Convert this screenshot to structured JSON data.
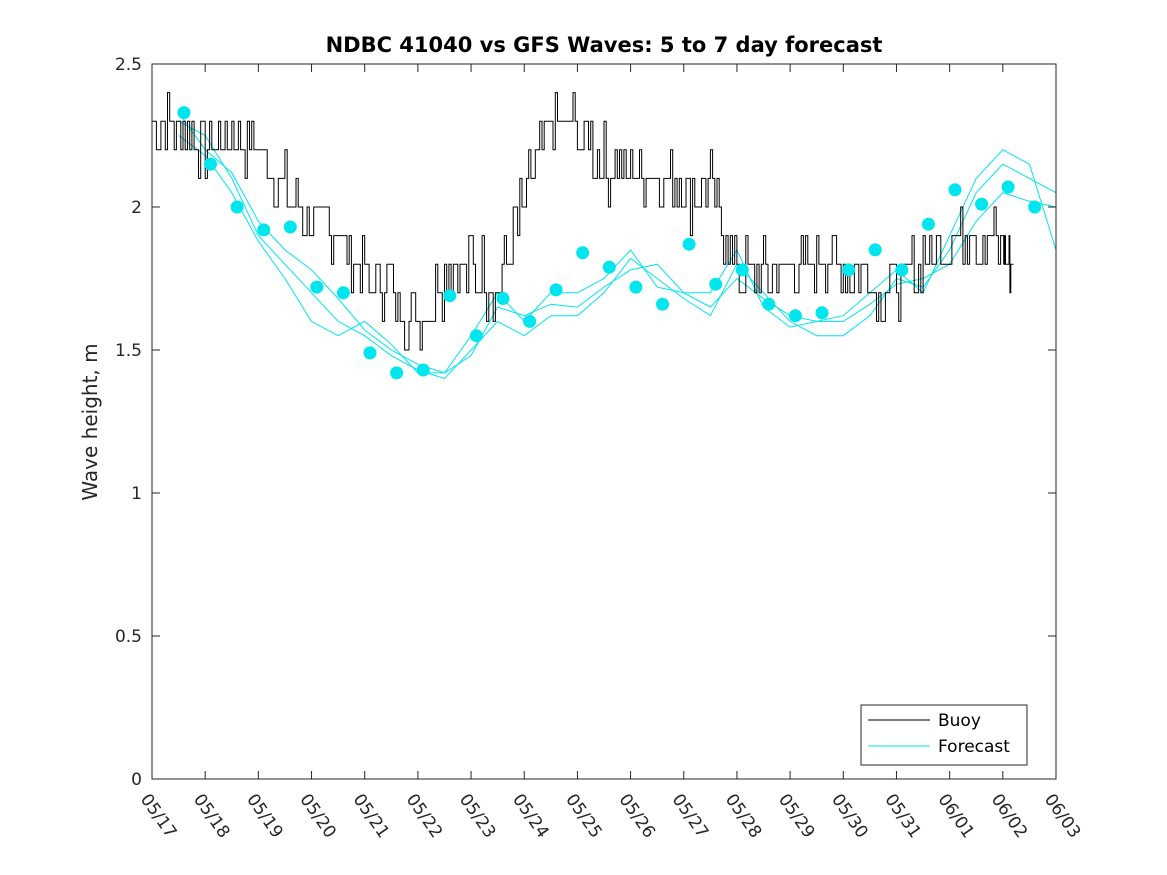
{
  "chart_data": {
    "type": "line",
    "title": "NDBC 41040 vs GFS Waves: 5 to 7 day forecast",
    "xlabel": "",
    "ylabel": "Wave height, m",
    "xlim": [
      "05/17",
      "06/03"
    ],
    "ylim": [
      0,
      2.5
    ],
    "x_ticks": [
      "05/17",
      "05/18",
      "05/19",
      "05/20",
      "05/21",
      "05/22",
      "05/23",
      "05/24",
      "05/25",
      "05/26",
      "05/27",
      "05/28",
      "05/29",
      "05/30",
      "05/31",
      "06/01",
      "06/02",
      "06/03"
    ],
    "y_ticks": [
      "0",
      "0.5",
      "1",
      "1.5",
      "2",
      "2.5"
    ],
    "grid": false,
    "legend": {
      "position": "bottom-right",
      "entries": [
        {
          "name": "Buoy",
          "color": "#000000"
        },
        {
          "name": "Forecast",
          "color": "#00e5ee"
        }
      ]
    },
    "series": [
      {
        "name": "Buoy",
        "color": "#000000",
        "x_days": [
          0,
          0.5,
          1,
          1.5,
          2,
          2.5,
          3,
          3.5,
          4,
          4.5,
          5,
          5.5,
          6,
          6.5,
          7,
          7.5,
          8,
          8.5,
          9,
          9.5,
          10,
          10.5,
          11,
          11.5,
          12,
          12.5,
          13,
          13.5,
          14,
          14.5,
          15,
          15.5,
          16,
          16.2
        ],
        "values": [
          2.25,
          2.3,
          2.2,
          2.25,
          2.2,
          2.05,
          1.95,
          1.9,
          1.75,
          1.7,
          1.6,
          1.75,
          1.8,
          1.7,
          2.0,
          2.3,
          2.25,
          2.15,
          2.1,
          2.1,
          2.05,
          2.05,
          1.8,
          1.75,
          1.75,
          1.8,
          1.8,
          1.75,
          1.7,
          1.8,
          1.9,
          1.9,
          1.85,
          1.8
        ]
      },
      {
        "name": "Forecast",
        "color": "#00e5ee",
        "runs": [
          {
            "x_days": [
              0.5,
              1.0,
              1.5,
              2.0,
              2.5,
              3.0,
              3.5,
              4.0,
              4.5,
              5.0,
              5.5,
              6.0,
              6.5,
              7.0,
              7.5,
              8.0,
              8.5,
              9.0,
              9.5,
              10.0,
              10.5,
              11.0,
              11.5,
              12.0,
              12.5,
              13.0,
              13.5,
              14.0,
              14.5,
              15.0,
              15.5,
              16.0,
              16.5,
              17.0
            ],
            "values": [
              2.33,
              2.2,
              2.12,
              1.95,
              1.85,
              1.78,
              1.68,
              1.57,
              1.5,
              1.45,
              1.42,
              1.48,
              1.65,
              1.62,
              1.66,
              1.65,
              1.72,
              1.78,
              1.8,
              1.7,
              1.65,
              1.75,
              1.68,
              1.62,
              1.6,
              1.6,
              1.66,
              1.73,
              1.75,
              1.8,
              1.95,
              2.05,
              2.02,
              2.0
            ]
          },
          {
            "x_days": [
              0.5,
              1.0,
              1.5,
              2.0,
              2.5,
              3.0,
              3.5,
              4.0,
              4.5,
              5.0,
              5.5,
              6.0,
              6.5,
              7.0,
              7.5,
              8.0,
              8.5,
              9.0,
              9.5,
              10.0,
              10.5,
              11.0,
              11.5,
              12.0,
              12.5,
              13.0,
              13.5,
              14.0,
              14.5,
              15.0,
              15.5,
              16.0,
              16.5,
              17.0
            ],
            "values": [
              2.3,
              2.25,
              2.1,
              1.9,
              1.8,
              1.7,
              1.6,
              1.55,
              1.48,
              1.43,
              1.4,
              1.5,
              1.6,
              1.55,
              1.62,
              1.62,
              1.7,
              1.82,
              1.75,
              1.68,
              1.62,
              1.8,
              1.7,
              1.6,
              1.55,
              1.55,
              1.62,
              1.75,
              1.72,
              1.85,
              2.05,
              2.15,
              2.1,
              2.05
            ]
          },
          {
            "x_days": [
              0.5,
              1.0,
              1.5,
              2.0,
              2.5,
              3.0,
              3.5,
              4.0,
              4.5,
              5.0,
              5.5,
              6.0,
              6.5,
              7.0,
              7.5,
              8.0,
              8.5,
              9.0,
              9.5,
              10.0,
              10.5,
              11.0,
              11.5,
              12.0,
              12.5,
              13.0,
              13.5,
              14.0,
              14.5,
              15.0,
              15.5,
              16.0,
              16.5,
              17.0
            ],
            "values": [
              2.25,
              2.18,
              2.05,
              1.88,
              1.75,
              1.6,
              1.55,
              1.6,
              1.52,
              1.42,
              1.42,
              1.55,
              1.7,
              1.6,
              1.7,
              1.7,
              1.75,
              1.85,
              1.72,
              1.7,
              1.7,
              1.85,
              1.65,
              1.58,
              1.6,
              1.62,
              1.7,
              1.78,
              1.7,
              1.9,
              2.1,
              2.2,
              2.15,
              1.85
            ]
          }
        ],
        "markers_x_days": [
          0.6,
          1.1,
          1.6,
          2.1,
          2.6,
          3.1,
          3.6,
          4.1,
          4.6,
          5.1,
          5.6,
          6.1,
          6.6,
          7.1,
          7.6,
          8.1,
          8.6,
          9.1,
          9.6,
          10.1,
          10.6,
          11.1,
          11.6,
          12.1,
          12.6,
          13.1,
          13.6,
          14.1,
          14.6,
          15.1,
          15.6,
          16.1,
          16.6
        ],
        "markers": [
          2.33,
          2.15,
          2.0,
          1.92,
          1.93,
          1.72,
          1.7,
          1.49,
          1.42,
          1.43,
          1.69,
          1.55,
          1.68,
          1.6,
          1.71,
          1.84,
          1.79,
          1.72,
          1.66,
          1.87,
          1.73,
          1.78,
          1.66,
          1.62,
          1.63,
          1.78,
          1.85,
          1.78,
          1.94,
          2.06,
          2.01,
          2.07,
          2.0
        ]
      }
    ]
  }
}
